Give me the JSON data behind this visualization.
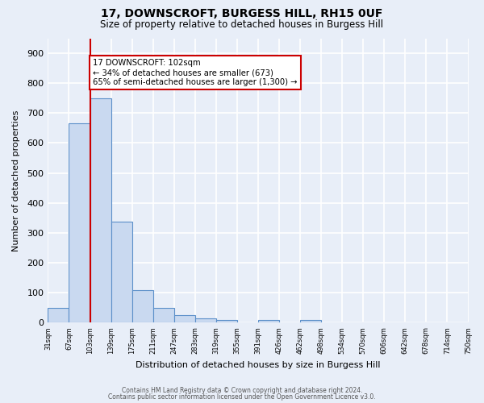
{
  "title1": "17, DOWNSCROFT, BURGESS HILL, RH15 0UF",
  "title2": "Size of property relative to detached houses in Burgess Hill",
  "xlabel": "Distribution of detached houses by size in Burgess Hill",
  "ylabel": "Number of detached properties",
  "bar_edges": [
    31,
    67,
    103,
    139,
    175,
    211,
    247,
    283,
    319,
    355,
    391,
    426,
    462,
    498,
    534,
    570,
    606,
    642,
    678,
    714,
    750
  ],
  "bar_heights": [
    50,
    665,
    750,
    338,
    108,
    50,
    25,
    13,
    10,
    0,
    8,
    0,
    8,
    0,
    0,
    0,
    0,
    0,
    0,
    0
  ],
  "bar_color": "#c9d9f0",
  "bar_edge_color": "#5b8fc9",
  "vline_x": 103,
  "vline_color": "#cc0000",
  "annotation_text": "17 DOWNSCROFT: 102sqm\n← 34% of detached houses are smaller (673)\n65% of semi-detached houses are larger (1,300) →",
  "annotation_box_color": "#ffffff",
  "annotation_box_edge": "#cc0000",
  "ylim": [
    0,
    950
  ],
  "yticks": [
    0,
    100,
    200,
    300,
    400,
    500,
    600,
    700,
    800,
    900
  ],
  "background_color": "#e8eef8",
  "grid_color": "#ffffff",
  "footer1": "Contains HM Land Registry data © Crown copyright and database right 2024.",
  "footer2": "Contains public sector information licensed under the Open Government Licence v3.0.",
  "tick_labels": [
    "31sqm",
    "67sqm",
    "103sqm",
    "139sqm",
    "175sqm",
    "211sqm",
    "247sqm",
    "283sqm",
    "319sqm",
    "355sqm",
    "391sqm",
    "426sqm",
    "462sqm",
    "498sqm",
    "534sqm",
    "570sqm",
    "606sqm",
    "642sqm",
    "678sqm",
    "714sqm",
    "750sqm"
  ]
}
